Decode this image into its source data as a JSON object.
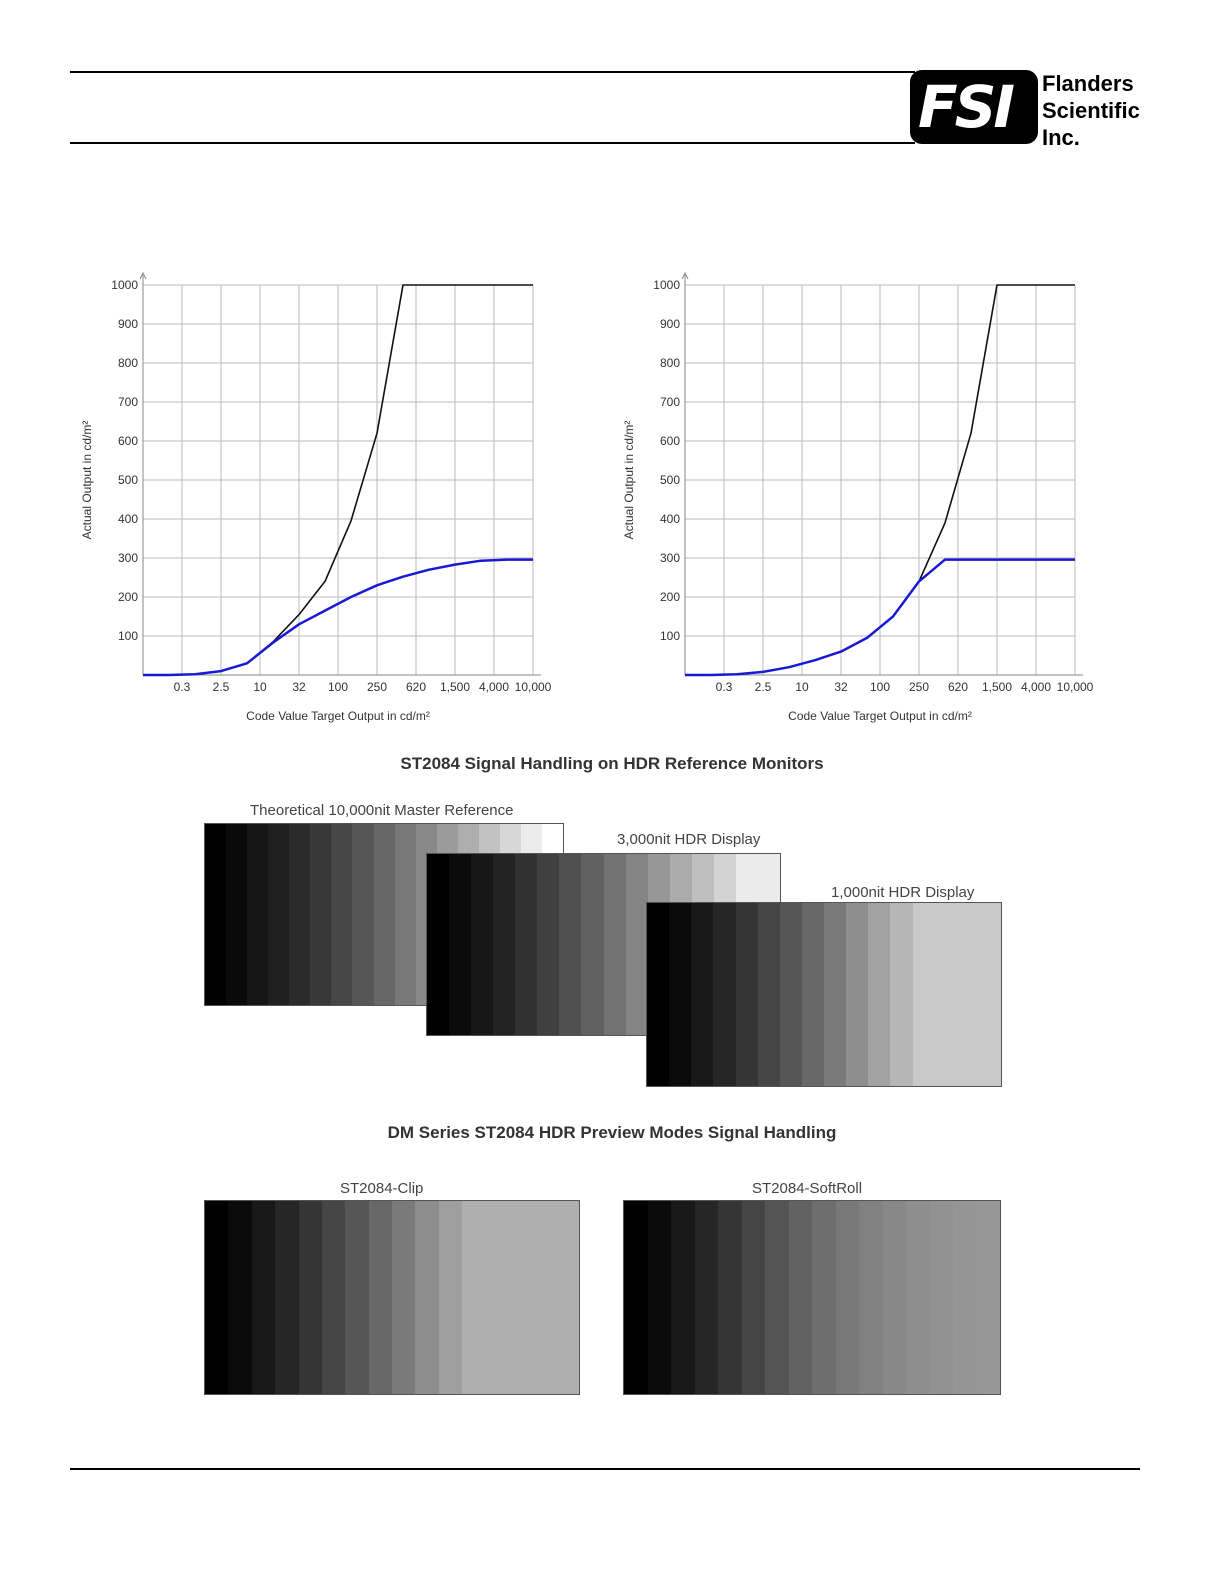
{
  "header": {
    "company_lines": [
      "Flanders",
      "Scientific",
      "Inc."
    ],
    "logo_mark": "FSI"
  },
  "charts": [
    {
      "type": "line",
      "ylabel": "Actual Output in cd/m²",
      "xlabel": "Code Value Target Output in cd/m²",
      "y_ticks": [
        100,
        200,
        300,
        400,
        500,
        600,
        700,
        800,
        900,
        1000
      ],
      "x_ticks": [
        "0.3",
        "2.5",
        "10",
        "32",
        "100",
        "250",
        "620",
        "1,500",
        "4,000",
        "10,000"
      ],
      "ylim": [
        0,
        1000
      ],
      "grid": true,
      "series": [
        {
          "color": "#111111",
          "values": [
            0,
            0,
            2,
            10,
            30,
            85,
            155,
            240,
            395,
            620,
            1000,
            1000,
            1000,
            1000,
            1000,
            1000
          ]
        },
        {
          "color": "#1a1ad6",
          "values": [
            0,
            0,
            2,
            10,
            30,
            83,
            130,
            165,
            200,
            230,
            252,
            270,
            283,
            293,
            296,
            296
          ]
        }
      ]
    },
    {
      "type": "line",
      "ylabel": "Actual Output in cd/m²",
      "xlabel": "Code Value Target Output in cd/m²",
      "y_ticks": [
        100,
        200,
        300,
        400,
        500,
        600,
        700,
        800,
        900,
        1000
      ],
      "x_ticks": [
        "0.3",
        "2.5",
        "10",
        "32",
        "100",
        "250",
        "620",
        "1,500",
        "4,000",
        "10,000"
      ],
      "ylim": [
        0,
        1000
      ],
      "grid": true,
      "series": [
        {
          "color": "#111111",
          "values": [
            0,
            0,
            2,
            8,
            20,
            38,
            60,
            95,
            150,
            240,
            390,
            620,
            1000,
            1000,
            1000,
            1000
          ]
        },
        {
          "color": "#1a1ad6",
          "values": [
            0,
            0,
            2,
            8,
            20,
            38,
            60,
            95,
            150,
            240,
            296,
            296,
            296,
            296,
            296,
            296
          ]
        }
      ]
    }
  ],
  "caption1": "ST2084 Signal Handling on HDR Reference Monitors",
  "ramps": {
    "master_label": "Theoretical 10,000nit Master Reference",
    "display3000_label": "3,000nit HDR Display",
    "display1000_label": "1,000nit HDR Display",
    "master_steps": [
      "#000000",
      "#0a0a0a",
      "#151515",
      "#202020",
      "#2b2b2b",
      "#383838",
      "#474747",
      "#565656",
      "#676767",
      "#787878",
      "#898989",
      "#9b9b9b",
      "#aeaeae",
      "#c2c2c2",
      "#d7d7d7",
      "#ececec",
      "#ffffff"
    ],
    "display3000_steps": [
      "#000000",
      "#0b0b0b",
      "#171717",
      "#232323",
      "#313131",
      "#404040",
      "#505050",
      "#616161",
      "#727272",
      "#848484",
      "#979797",
      "#ababab",
      "#bfbfbf",
      "#d3d3d3",
      "#ebebeb",
      "#ebebeb"
    ],
    "display1000_steps": [
      "#000000",
      "#0b0b0b",
      "#181818",
      "#262626",
      "#353535",
      "#454545",
      "#565656",
      "#686868",
      "#7a7a7a",
      "#8e8e8e",
      "#a2a2a2",
      "#b6b6b6",
      "#c9c9c9",
      "#c9c9c9",
      "#c9c9c9",
      "#c9c9c9"
    ]
  },
  "caption2": "DM Series ST2084 HDR Preview Modes Signal Handling",
  "preview": {
    "clip_label": "ST2084-Clip",
    "softroll_label": "ST2084-SoftRoll",
    "clip_steps": [
      "#000000",
      "#0b0b0b",
      "#181818",
      "#262626",
      "#353535",
      "#454545",
      "#565656",
      "#686868",
      "#7a7a7a",
      "#8d8d8d",
      "#9f9f9f",
      "#afafaf",
      "#afafaf",
      "#afafaf",
      "#afafaf",
      "#afafaf"
    ],
    "softroll_steps": [
      "#000000",
      "#0b0b0b",
      "#181818",
      "#262626",
      "#353535",
      "#454545",
      "#545454",
      "#626262",
      "#6e6e6e",
      "#787878",
      "#818181",
      "#888888",
      "#8e8e8e",
      "#929292",
      "#959595",
      "#979797"
    ]
  }
}
